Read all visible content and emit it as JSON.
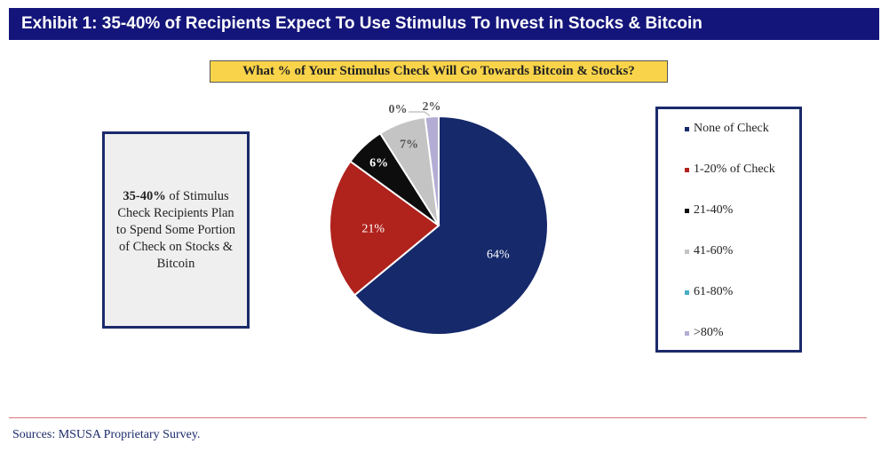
{
  "header": {
    "title": "Exhibit 1: 35-40% of Recipients Expect To Use Stimulus To Invest in Stocks & Bitcoin"
  },
  "note": {
    "bold": "35-40%",
    "text": " of Stimulus Check Recipients Plan to Spend Some Portion of Check on Stocks & Bitcoin"
  },
  "footer": {
    "sources": "Sources: MSUSA Proprietary Survey."
  },
  "chart_data": {
    "type": "pie",
    "title": "What % of Your Stimulus Check Will Go Towards Bitcoin & Stocks?",
    "legend_position": "right",
    "slices": [
      {
        "label": "None of Check",
        "value": 64,
        "display": "64%",
        "color": "#15296b"
      },
      {
        "label": "1-20% of Check",
        "value": 21,
        "display": "21%",
        "color": "#b0221c"
      },
      {
        "label": "21-40%",
        "value": 6,
        "display": "6%",
        "color": "#0d0d0d"
      },
      {
        "label": "41-60%",
        "value": 7,
        "display": "7%",
        "color": "#c4c4c4"
      },
      {
        "label": "61-80%",
        "value": 0,
        "display": "0%",
        "color": "#4bacc6"
      },
      {
        "label": ">80%",
        "value": 2,
        "display": "2%",
        "color": "#b3acd3"
      }
    ]
  }
}
